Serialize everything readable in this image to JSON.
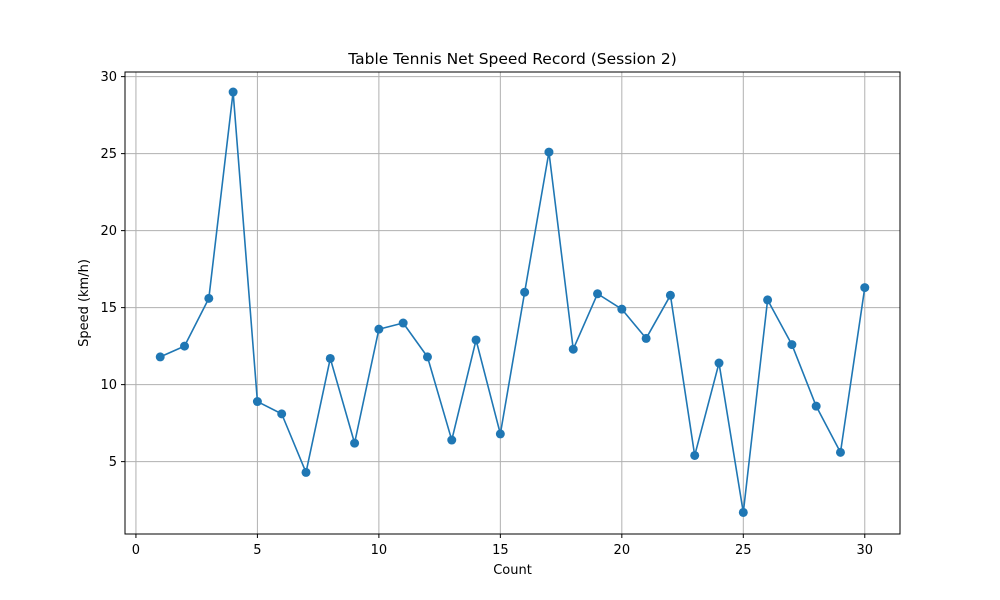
{
  "chart_data": {
    "type": "line",
    "title": "Table Tennis Net Speed Record (Session 2)",
    "xlabel": "Count",
    "ylabel": "Speed (km/h)",
    "xlim": [
      -0.45,
      31.45
    ],
    "ylim": [
      0.3,
      30.3
    ],
    "xticks": [
      0,
      5,
      10,
      15,
      20,
      25,
      30
    ],
    "yticks": [
      5,
      10,
      15,
      20,
      25,
      30
    ],
    "grid": true,
    "marker": "circle",
    "colors": {
      "line": "#1f77b4"
    },
    "series": [
      {
        "x": [
          1,
          2,
          3,
          4,
          5,
          6,
          7,
          8,
          9,
          10,
          11,
          12,
          13,
          14,
          15,
          16,
          17,
          18,
          19,
          20,
          21,
          22,
          23,
          24,
          25,
          26,
          27,
          28,
          29,
          30
        ],
        "values": [
          11.8,
          12.5,
          15.6,
          29.0,
          8.9,
          8.1,
          4.3,
          11.7,
          6.2,
          13.6,
          14.0,
          11.8,
          6.4,
          12.9,
          6.8,
          16.0,
          25.1,
          12.3,
          15.9,
          14.9,
          13.0,
          15.8,
          5.4,
          11.4,
          1.7,
          15.5,
          12.6,
          8.6,
          5.6,
          16.3
        ]
      }
    ]
  }
}
